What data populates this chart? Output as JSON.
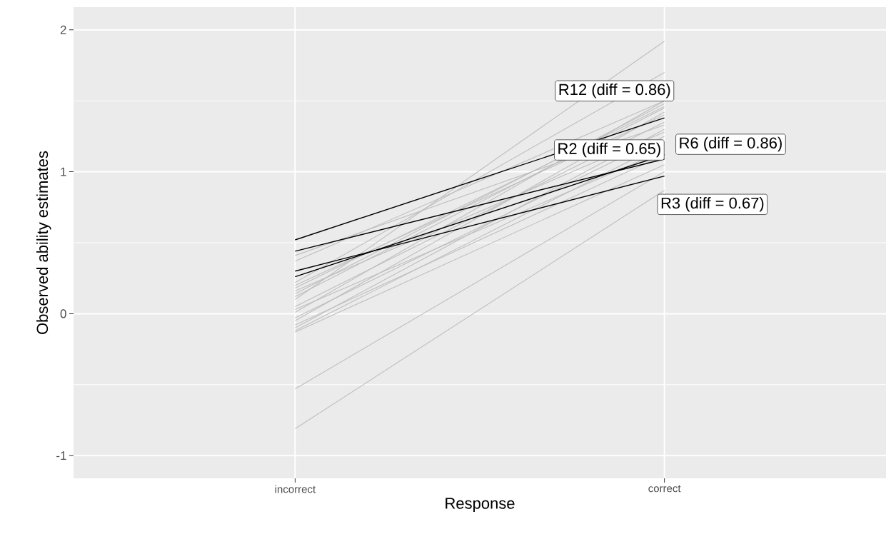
{
  "chart_data": {
    "type": "line",
    "xlabel": "Response",
    "ylabel": "Observed ability estimates",
    "categories": [
      "incorrect",
      "correct"
    ],
    "ylim": [
      -1.16,
      2.16
    ],
    "yticks": [
      -1,
      0,
      1,
      2
    ],
    "grid": true,
    "marker": "none",
    "line_style": "solid",
    "series": [
      {
        "color": "#bebebe",
        "values": [
          -0.81,
          0.87
        ]
      },
      {
        "color": "#bebebe",
        "values": [
          -0.53,
          1.0
        ]
      },
      {
        "color": "#bebebe",
        "values": [
          -0.13,
          1.05
        ]
      },
      {
        "color": "#bebebe",
        "values": [
          -0.12,
          1.2
        ]
      },
      {
        "color": "#bebebe",
        "values": [
          -0.1,
          1.3
        ]
      },
      {
        "color": "#bebebe",
        "values": [
          -0.08,
          1.12
        ]
      },
      {
        "color": "#bebebe",
        "values": [
          -0.05,
          1.42
        ]
      },
      {
        "color": "#bebebe",
        "values": [
          -0.03,
          1.25
        ]
      },
      {
        "color": "#bebebe",
        "values": [
          0.01,
          1.5
        ]
      },
      {
        "color": "#bebebe",
        "values": [
          0.03,
          1.15
        ]
      },
      {
        "color": "#bebebe",
        "values": [
          0.05,
          1.35
        ]
      },
      {
        "color": "#bebebe",
        "values": [
          0.1,
          1.92
        ]
      },
      {
        "color": "#bebebe",
        "values": [
          0.12,
          1.45
        ]
      },
      {
        "color": "#bebebe",
        "values": [
          0.14,
          1.48
        ]
      },
      {
        "color": "#bebebe",
        "values": [
          0.16,
          1.28
        ]
      },
      {
        "color": "#bebebe",
        "values": [
          0.18,
          1.46
        ]
      },
      {
        "color": "#bebebe",
        "values": [
          0.2,
          1.4
        ]
      },
      {
        "color": "#bebebe",
        "values": [
          0.22,
          1.7
        ]
      },
      {
        "color": "#bebebe",
        "values": [
          0.37,
          1.5
        ]
      },
      {
        "color": "#bebebe",
        "values": [
          0.41,
          1.33
        ]
      },
      {
        "name": "R12 (diff = 0.86)",
        "color": "#000000",
        "values": [
          0.52,
          1.38
        ]
      },
      {
        "name": "R2 (diff = 0.65)",
        "color": "#000000",
        "values": [
          0.44,
          1.09
        ]
      },
      {
        "name": "R6 (diff = 0.86)",
        "color": "#000000",
        "values": [
          0.26,
          1.12
        ]
      },
      {
        "name": "R3 (diff = 0.67)",
        "color": "#000000",
        "values": [
          0.3,
          0.97
        ]
      }
    ]
  }
}
